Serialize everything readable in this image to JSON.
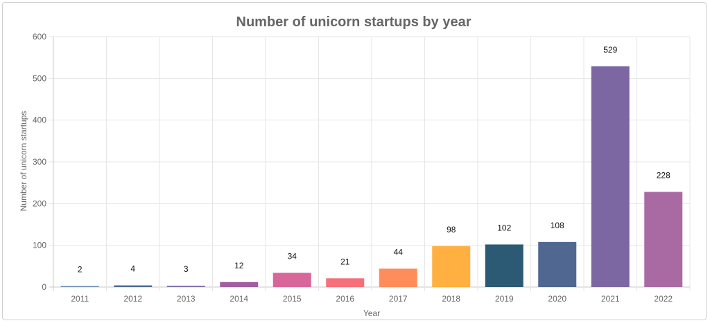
{
  "chart_data": {
    "type": "bar",
    "title": "Number of unicorn startups by year",
    "xlabel": "Year",
    "ylabel": "Number of unicorn startups",
    "categories": [
      "2011",
      "2012",
      "2013",
      "2014",
      "2015",
      "2016",
      "2017",
      "2018",
      "2019",
      "2020",
      "2021",
      "2022"
    ],
    "values": [
      2,
      4,
      3,
      12,
      34,
      21,
      44,
      98,
      102,
      108,
      529,
      228
    ],
    "bar_colors": [
      "#6f8fb5",
      "#4e6a9a",
      "#7d6ba8",
      "#a25f9f",
      "#d9669a",
      "#f6707c",
      "#ff8d5c",
      "#ffb040",
      "#2c5a74",
      "#4f6791",
      "#7d67a2",
      "#a96aa3"
    ],
    "data_labels": [
      "2",
      "4",
      "3",
      "12",
      "34",
      "21",
      "44",
      "98",
      "102",
      "108",
      "529",
      "228"
    ],
    "ylim": [
      0,
      600
    ],
    "yticks": [
      "0",
      "100",
      "200",
      "300",
      "400",
      "500",
      "600"
    ],
    "grid": true,
    "legend": "none"
  }
}
